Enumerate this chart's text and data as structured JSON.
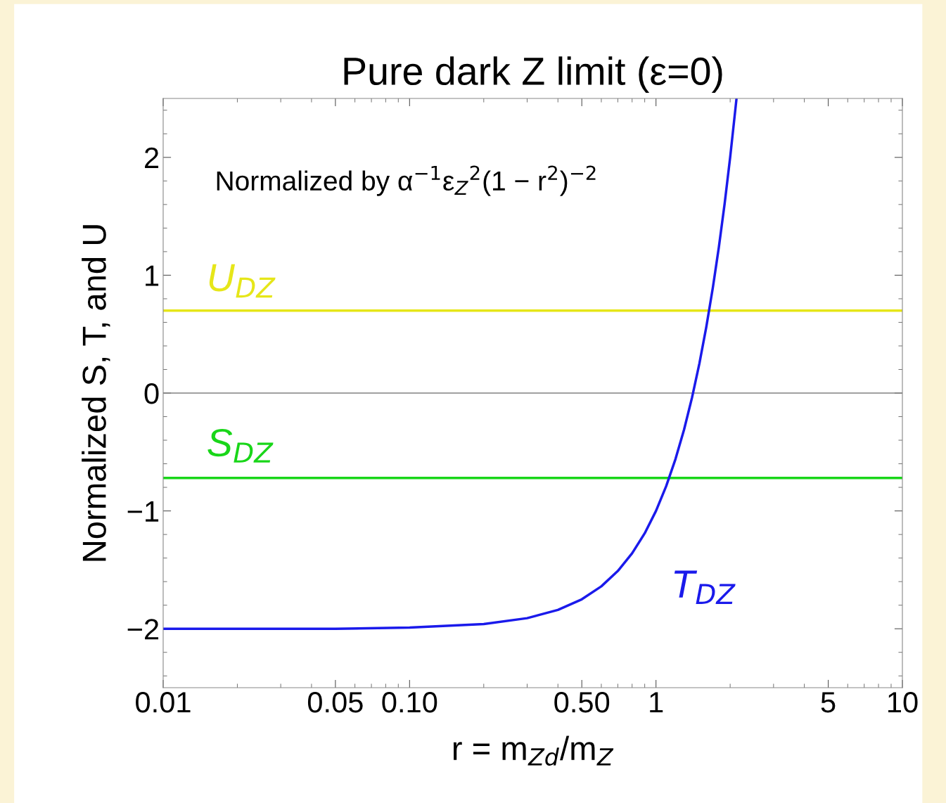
{
  "chart_data": {
    "type": "line",
    "title": "Pure dark Z limit (ε=0)",
    "xlabel": "r = m$_{Zd}$/m$_{Z}$",
    "ylabel": "Normalized S, T, and U",
    "annotations": [
      "Normalized by α$^{−1}$ε$_{Z}$$^{2}$(1 − r$^{2}$)$^{−2}$"
    ],
    "log": "x",
    "xlim": [
      0.01,
      10
    ],
    "ylim": [
      -2.5,
      2.5
    ],
    "xticks": [
      0.01,
      {
        "value": 0.05,
        "label": "0.05"
      },
      {
        "value": 0.1,
        "label": "0.10"
      },
      {
        "value": 0.5,
        "label": "0.50"
      },
      1,
      5,
      10
    ],
    "yticks": [
      {
        "value": -2,
        "label": "−2"
      },
      {
        "value": -1,
        "label": "−1"
      },
      0,
      1,
      2
    ],
    "grid": false,
    "legend": false,
    "marker": "none",
    "line_style": "solid",
    "ref_lines": [
      {
        "axis": "y",
        "value": 0,
        "color": "#808080"
      }
    ],
    "series": [
      {
        "name": "U$_{DZ}$",
        "color": "#e6e619",
        "x": [
          0.01,
          10
        ],
        "values": [
          0.7,
          0.7
        ]
      },
      {
        "name": "S$_{DZ}$",
        "color": "#19d619",
        "x": [
          0.01,
          10
        ],
        "values": [
          -0.72,
          -0.72
        ]
      },
      {
        "name": "T$_{DZ}$",
        "color": "#1a1aeb",
        "x": [
          0.01,
          0.02,
          0.05,
          0.1,
          0.2,
          0.3,
          0.4,
          0.5,
          0.6,
          0.7,
          0.8,
          0.9,
          1.0,
          1.1,
          1.2,
          1.3,
          1.4,
          1.5,
          1.6,
          1.7,
          1.8,
          1.9,
          2.0,
          2.1,
          2.12
        ],
        "values": [
          -2.0,
          -2.0,
          -2.0,
          -1.99,
          -1.96,
          -1.91,
          -1.84,
          -1.75,
          -1.64,
          -1.51,
          -1.36,
          -1.19,
          -1.0,
          -0.79,
          -0.56,
          -0.31,
          -0.04,
          0.25,
          0.56,
          0.89,
          1.24,
          1.61,
          2.0,
          2.41,
          2.49
        ]
      }
    ]
  }
}
